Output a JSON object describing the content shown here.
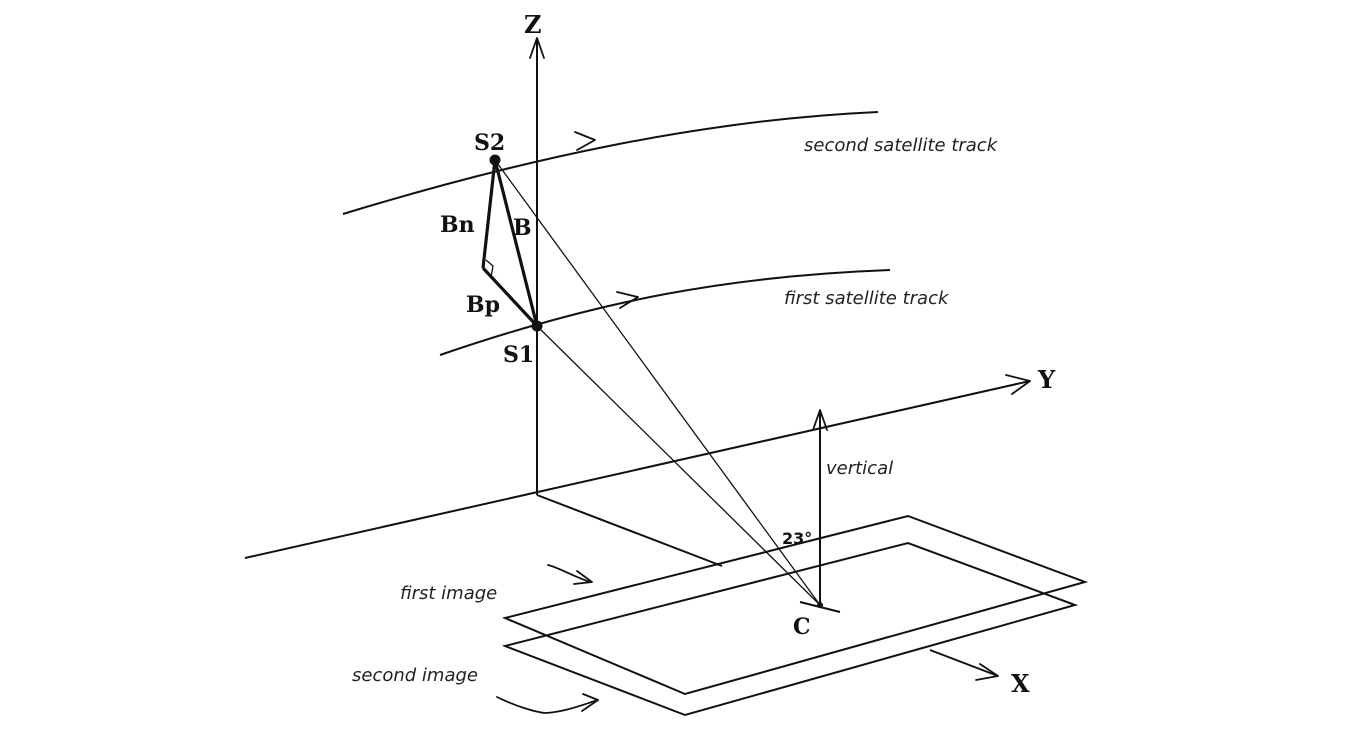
{
  "axes": {
    "z": "Z",
    "y": "Y",
    "x": "X"
  },
  "points": {
    "s1": "S1",
    "s2": "S2",
    "c": "C"
  },
  "baselines": {
    "bn": "Bn",
    "b": "B",
    "bp": "Bp"
  },
  "tracks": {
    "second": "second satellite track",
    "first": "first satellite track"
  },
  "vertical_label": "vertical",
  "angle_label": "23°",
  "images": {
    "first": "first image",
    "second": "second image"
  }
}
